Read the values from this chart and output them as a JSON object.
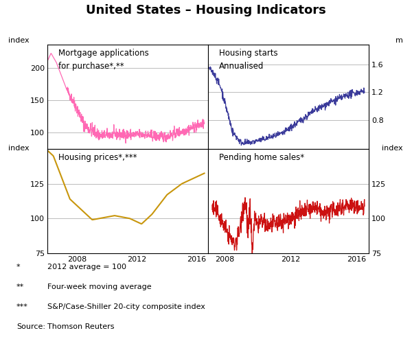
{
  "title": "United States – Housing Indicators",
  "title_fontsize": 13,
  "footnotes": [
    [
      "*",
      "2012 average = 100"
    ],
    [
      "**",
      "Four-week moving average"
    ],
    [
      "***",
      "S&P/Case-Shiller 20-city composite index"
    ],
    [
      "Source:",
      "Thomson Reuters"
    ]
  ],
  "panels": {
    "top_left": {
      "label_line1": "Mortgage applications",
      "label_line2": "for purchase*,**",
      "ylabel_left": "index",
      "color": "#FF69B4",
      "ylim": [
        75,
        235
      ],
      "yticks": [
        100,
        150,
        200
      ],
      "xlim_start": 2006.0,
      "xlim_end": 2016.75
    },
    "top_right": {
      "label_line1": "Housing starts",
      "label_line2": "Annualised",
      "ylabel_right": "m",
      "color": "#3A3A9A",
      "ylim": [
        0.38,
        1.88
      ],
      "yticks": [
        0.8,
        1.2,
        1.6
      ],
      "xlim_start": 2007.0,
      "xlim_end": 2016.75
    },
    "bottom_left": {
      "label_line1": "Housing prices*,***",
      "label_line2": "",
      "ylabel_left": "index",
      "color": "#C8960C",
      "ylim": [
        75,
        150
      ],
      "yticks": [
        75,
        100,
        125
      ],
      "xlim_start": 2006.0,
      "xlim_end": 2016.75
    },
    "bottom_right": {
      "label_line1": "Pending home sales*",
      "label_line2": "",
      "ylabel_right": "index",
      "color": "#CC1111",
      "ylim": [
        75,
        150
      ],
      "yticks": [
        75,
        100,
        125
      ],
      "xlim_start": 2007.0,
      "xlim_end": 2016.75
    }
  },
  "xticks": [
    2008,
    2012,
    2016
  ],
  "grid_color": "#BBBBBB",
  "bg_color": "#FFFFFF",
  "spine_color": "#000000"
}
